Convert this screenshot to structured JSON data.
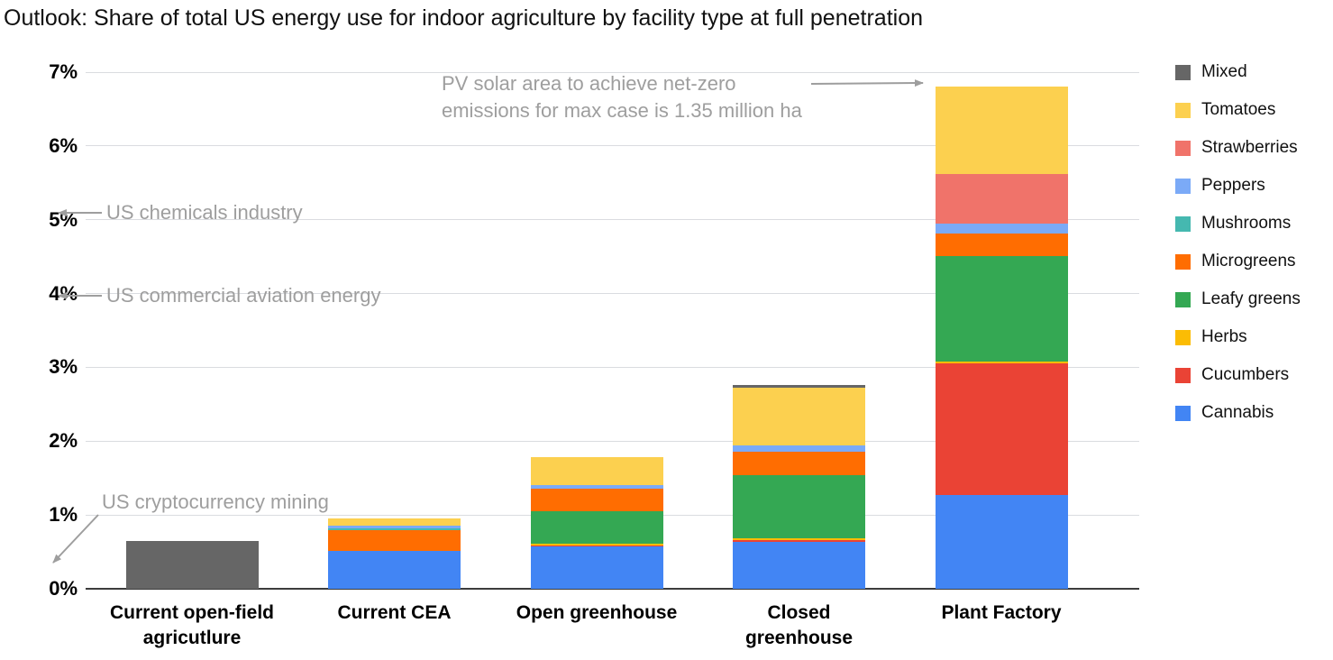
{
  "title": "Outlook: Share of total US energy use for indoor agriculture by facility type at full penetration",
  "colors": {
    "background": "#ffffff",
    "gridline": "#dadce0",
    "axis_line": "#3c3c3c",
    "annotation_gray": "#9e9e9e",
    "text": "#000000"
  },
  "chart_data": {
    "type": "bar",
    "stacked": true,
    "title": "Outlook: Share of total US energy use for indoor agriculture by facility type at full penetration",
    "xlabel": "",
    "ylabel": "",
    "ylim": [
      0,
      7
    ],
    "y_ticks": [
      "0%",
      "1%",
      "2%",
      "3%",
      "4%",
      "5%",
      "6%",
      "7%"
    ],
    "grid": true,
    "legend_position": "right",
    "categories": [
      "Current open-field agricutlure",
      "Current CEA",
      "Open greenhouse",
      "Closed greenhouse",
      "Plant Factory"
    ],
    "category_label_lines": [
      [
        "Current open-field",
        "agricutlure"
      ],
      [
        "Current CEA"
      ],
      [
        "Open greenhouse"
      ],
      [
        "Closed",
        "greenhouse"
      ],
      [
        "Plant Factory"
      ]
    ],
    "series": [
      {
        "name": "Mixed",
        "color": "#666666",
        "values": [
          0.65,
          0,
          0,
          0.04,
          0
        ]
      },
      {
        "name": "Tomatoes",
        "color": "#fcd04f",
        "values": [
          0,
          0.09,
          0.38,
          0.78,
          1.19
        ]
      },
      {
        "name": "Strawberries",
        "color": "#f0736a",
        "values": [
          0,
          0,
          0,
          0,
          0.67
        ]
      },
      {
        "name": "Peppers",
        "color": "#7baaf7",
        "values": [
          0,
          0.04,
          0.05,
          0.08,
          0.14
        ]
      },
      {
        "name": "Mushrooms",
        "color": "#45b8b0",
        "values": [
          0,
          0.03,
          0,
          0,
          0
        ]
      },
      {
        "name": "Microgreens",
        "color": "#ff6d01",
        "values": [
          0,
          0.28,
          0.3,
          0.32,
          0.3
        ]
      },
      {
        "name": "Leafy greens",
        "color": "#34a853",
        "values": [
          0,
          0,
          0.44,
          0.86,
          1.43
        ]
      },
      {
        "name": "Herbs",
        "color": "#fbbc04",
        "values": [
          0,
          0,
          0.02,
          0.02,
          0.03
        ]
      },
      {
        "name": "Cucumbers",
        "color": "#ea4335",
        "values": [
          0,
          0,
          0.01,
          0.03,
          1.78
        ]
      },
      {
        "name": "Cannabis",
        "color": "#4285f4",
        "values": [
          0,
          0.51,
          0.58,
          0.63,
          1.27
        ]
      }
    ],
    "stack_order_bottom_to_top": [
      "Cannabis",
      "Cucumbers",
      "Herbs",
      "Leafy greens",
      "Microgreens",
      "Mushrooms",
      "Peppers",
      "Strawberries",
      "Tomatoes",
      "Mixed"
    ],
    "stack_totals_percent": [
      0.65,
      0.95,
      1.78,
      2.76,
      6.81
    ],
    "annotations": {
      "pv_solar": {
        "line1": "PV solar area to achieve net-zero",
        "line2": "emissions for max case is 1.35 million ha",
        "arrow": "points right to top of Plant Factory bar"
      },
      "chemicals": {
        "text": "US chemicals industry",
        "arrow": "points left to 5% gridline"
      },
      "aviation": {
        "text": "US commercial aviation energy",
        "arrow": "points left to 4% gridline"
      },
      "crypto": {
        "text": "US cryptocurrency mining",
        "arrow": "points down-left toward 0.35% near axis"
      }
    }
  }
}
